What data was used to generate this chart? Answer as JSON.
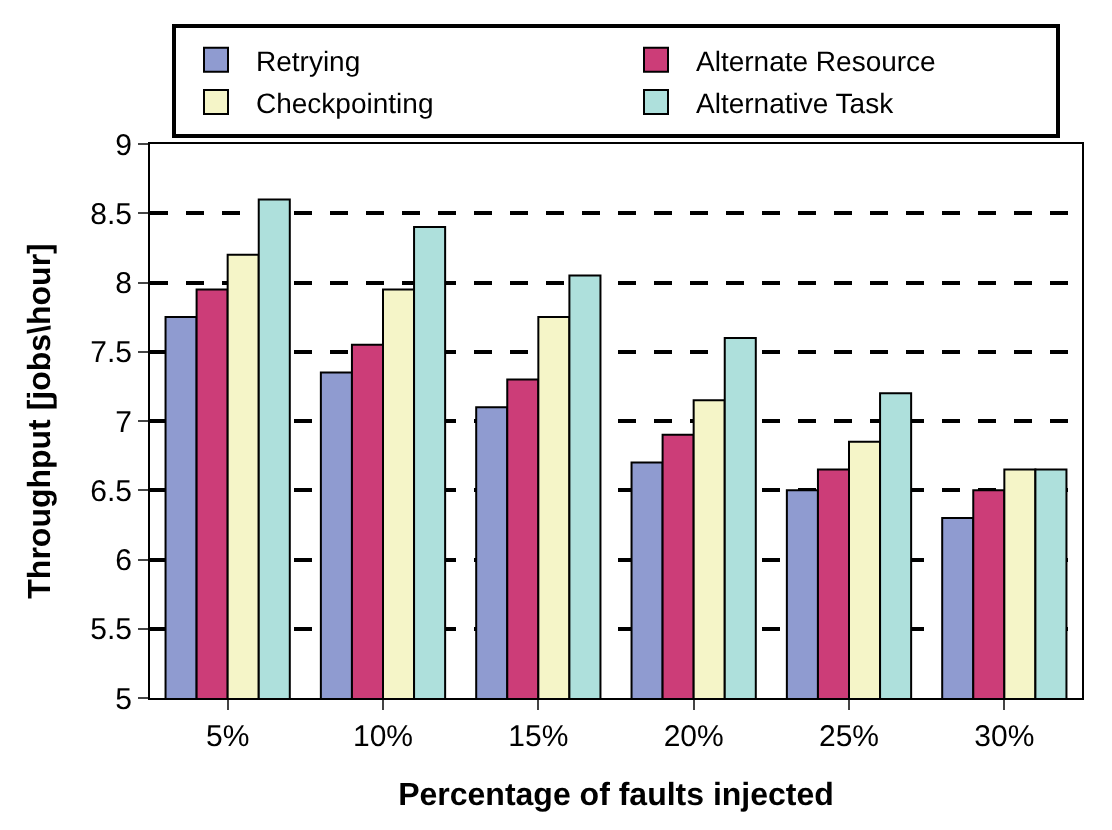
{
  "chart_data": {
    "type": "bar",
    "xlabel": "Percentage of faults injected",
    "ylabel": "Throughput [jobs\\hour]",
    "categories": [
      "5%",
      "10%",
      "15%",
      "20%",
      "25%",
      "30%"
    ],
    "series": [
      {
        "name": "Retrying",
        "color": "#8f9bd0",
        "values": [
          7.75,
          7.35,
          7.1,
          6.7,
          6.5,
          6.3
        ]
      },
      {
        "name": "Alternate Resource",
        "color": "#cc3d78",
        "values": [
          7.95,
          7.55,
          7.3,
          6.9,
          6.65,
          6.5
        ]
      },
      {
        "name": "Checkpointing",
        "color": "#f5f5c8",
        "values": [
          8.2,
          7.95,
          7.75,
          7.15,
          6.85,
          6.65
        ]
      },
      {
        "name": "Alternative Task",
        "color": "#aee0dc",
        "values": [
          8.6,
          8.4,
          8.05,
          7.6,
          7.2,
          6.65
        ]
      }
    ],
    "ylim": [
      5,
      9
    ],
    "yticks": [
      5,
      5.5,
      6,
      6.5,
      7,
      7.5,
      8,
      8.5,
      9
    ],
    "grid": "y",
    "legend": "top"
  }
}
